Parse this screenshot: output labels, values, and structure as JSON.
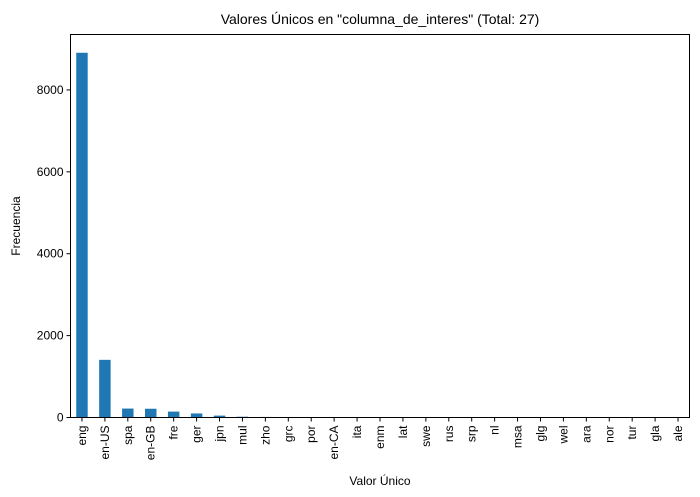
{
  "chart_data": {
    "type": "bar",
    "title": "Valores Únicos en \"columna_de_interes\" (Total: 27)",
    "xlabel": "Valor Único",
    "ylabel": "Frecuencia",
    "categories": [
      "eng",
      "en-US",
      "spa",
      "en-GB",
      "fre",
      "ger",
      "jpn",
      "mul",
      "zho",
      "grc",
      "por",
      "en-CA",
      "ita",
      "enm",
      "lat",
      "swe",
      "rus",
      "srp",
      "nl",
      "msa",
      "glg",
      "wel",
      "ara",
      "nor",
      "tur",
      "gla",
      "ale"
    ],
    "values": [
      8908,
      1408,
      218,
      214,
      144,
      99,
      46,
      19,
      14,
      11,
      10,
      7,
      5,
      3,
      3,
      2,
      2,
      1,
      1,
      1,
      1,
      1,
      1,
      1,
      1,
      1,
      1
    ],
    "yticks": [
      0,
      2000,
      4000,
      6000,
      8000
    ],
    "ylim": [
      0,
      9354
    ],
    "bar_color": "#1f77b4",
    "grid": false,
    "legend": "none"
  }
}
